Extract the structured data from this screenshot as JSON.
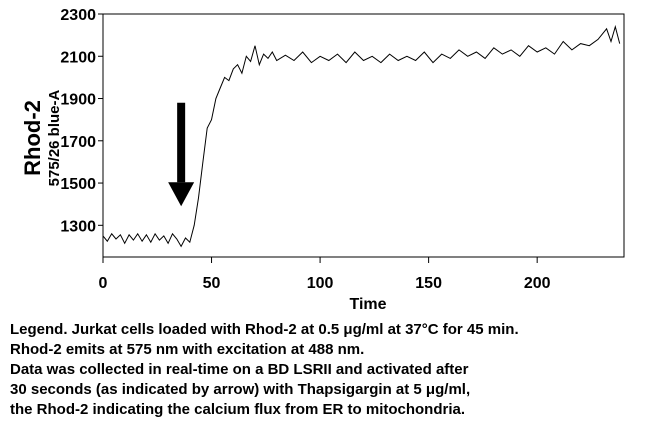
{
  "chart_data": {
    "type": "line",
    "title": "",
    "xlabel": "Time",
    "ylabel": "Rhod-2",
    "ylabel_sub": "575/26 blue-A",
    "xlim": [
      0,
      240
    ],
    "ylim": [
      1150,
      2300
    ],
    "x_ticks": [
      0,
      50,
      100,
      150,
      200
    ],
    "y_ticks": [
      1300,
      1500,
      1700,
      1900,
      2100,
      2300
    ],
    "grid": false,
    "annotation": {
      "type": "arrow",
      "x": 36,
      "y_from": 1880,
      "y_to": 1390
    },
    "series": [
      {
        "x": [
          0,
          2,
          4,
          6,
          8,
          10,
          12,
          14,
          16,
          18,
          20,
          22,
          24,
          26,
          28,
          30,
          32,
          34,
          36,
          38,
          40,
          42,
          44,
          46,
          48,
          50,
          52,
          54,
          56,
          58,
          60,
          62,
          64,
          66,
          68,
          70,
          72,
          74,
          76,
          78,
          80,
          84,
          88,
          92,
          96,
          100,
          104,
          108,
          112,
          116,
          120,
          124,
          128,
          132,
          136,
          140,
          144,
          148,
          152,
          156,
          160,
          164,
          168,
          172,
          176,
          180,
          184,
          188,
          192,
          196,
          200,
          204,
          208,
          212,
          216,
          220,
          224,
          228,
          232,
          234,
          236,
          238
        ],
        "y": [
          1250,
          1225,
          1260,
          1235,
          1255,
          1215,
          1255,
          1230,
          1260,
          1225,
          1255,
          1220,
          1260,
          1230,
          1250,
          1215,
          1260,
          1235,
          1200,
          1240,
          1220,
          1300,
          1430,
          1600,
          1760,
          1800,
          1900,
          1950,
          2000,
          1985,
          2040,
          2060,
          2020,
          2100,
          2075,
          2150,
          2060,
          2110,
          2090,
          2120,
          2080,
          2105,
          2080,
          2120,
          2070,
          2100,
          2080,
          2110,
          2070,
          2120,
          2080,
          2100,
          2070,
          2110,
          2080,
          2100,
          2080,
          2120,
          2070,
          2110,
          2090,
          2130,
          2100,
          2120,
          2090,
          2140,
          2110,
          2130,
          2100,
          2150,
          2120,
          2140,
          2110,
          2170,
          2130,
          2160,
          2150,
          2180,
          2230,
          2170,
          2240,
          2160
        ]
      }
    ]
  },
  "legend_lines": [
    "Legend. Jurkat cells loaded with Rhod-2 at 0.5 μg/ml at 37°C for 45 min.",
    "Rhod-2 emits at 575 nm with excitation at 488 nm.",
    "Data was collected in real-time on a BD LSRII and activated after",
    "30 seconds (as indicated by arrow) with Thapsigargin at 5 μg/ml,",
    "the Rhod-2 indicating the calcium flux from ER to mitochondria."
  ]
}
